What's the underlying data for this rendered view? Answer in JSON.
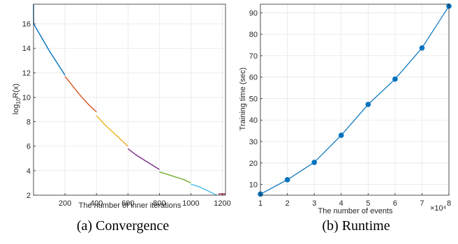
{
  "chart_data": [
    {
      "type": "line",
      "caption": "(a) Convergence",
      "xlabel": "The number of inner iterations",
      "ylabel": "log10R(x)",
      "xlim": [
        0,
        1220
      ],
      "ylim": [
        2,
        17.6
      ],
      "x_ticks": [
        200,
        400,
        600,
        800,
        1000,
        1200
      ],
      "y_ticks": [
        2,
        4,
        6,
        8,
        10,
        12,
        14,
        16
      ],
      "grid": true,
      "segments": [
        {
          "color": "#0072BD",
          "points": [
            [
              0,
              17.6
            ],
            [
              1,
              16.0
            ],
            [
              50,
              14.9
            ],
            [
              100,
              13.8
            ],
            [
              150,
              12.8
            ],
            [
              200,
              11.8
            ]
          ]
        },
        {
          "color": "#D95319",
          "points": [
            [
              200,
              11.7
            ],
            [
              250,
              10.9
            ],
            [
              300,
              10.1
            ],
            [
              350,
              9.4
            ],
            [
              400,
              8.8
            ]
          ]
        },
        {
          "color": "#EDB120",
          "points": [
            [
              400,
              8.5
            ],
            [
              450,
              7.8
            ],
            [
              500,
              7.2
            ],
            [
              550,
              6.6
            ],
            [
              600,
              6.0
            ]
          ]
        },
        {
          "color": "#7E2F8E",
          "points": [
            [
              600,
              5.8
            ],
            [
              650,
              5.3
            ],
            [
              700,
              4.9
            ],
            [
              750,
              4.5
            ],
            [
              800,
              4.1
            ]
          ]
        },
        {
          "color": "#77AC30",
          "points": [
            [
              800,
              3.9
            ],
            [
              850,
              3.7
            ],
            [
              900,
              3.5
            ],
            [
              950,
              3.3
            ],
            [
              1000,
              3.0
            ]
          ]
        },
        {
          "color": "#4DBEEE",
          "points": [
            [
              1000,
              2.9
            ],
            [
              1050,
              2.7
            ],
            [
              1100,
              2.4
            ],
            [
              1150,
              2.1
            ],
            [
              1165,
              2.0
            ]
          ]
        },
        {
          "color": "#A2142F",
          "points": [
            [
              1175,
              2.1
            ],
            [
              1220,
              2.1
            ]
          ]
        }
      ]
    },
    {
      "type": "line",
      "caption": "(b) Runtime",
      "xlabel": "The number of events",
      "ylabel": "Training time (sec)",
      "x_multiplier": "×10⁴",
      "xlim": [
        1,
        8
      ],
      "ylim": [
        5,
        94
      ],
      "x_ticks": [
        1,
        2,
        3,
        4,
        5,
        6,
        7,
        8
      ],
      "y_ticks": [
        10,
        20,
        30,
        40,
        50,
        60,
        70,
        80,
        90
      ],
      "grid": true,
      "series": [
        {
          "color": "#0072BD",
          "marker": "circle",
          "x": [
            1,
            2,
            3,
            4,
            5,
            6,
            7,
            8
          ],
          "y": [
            5.5,
            12.2,
            20.3,
            32.9,
            47.3,
            59.1,
            73.6,
            93.1
          ]
        }
      ]
    }
  ]
}
